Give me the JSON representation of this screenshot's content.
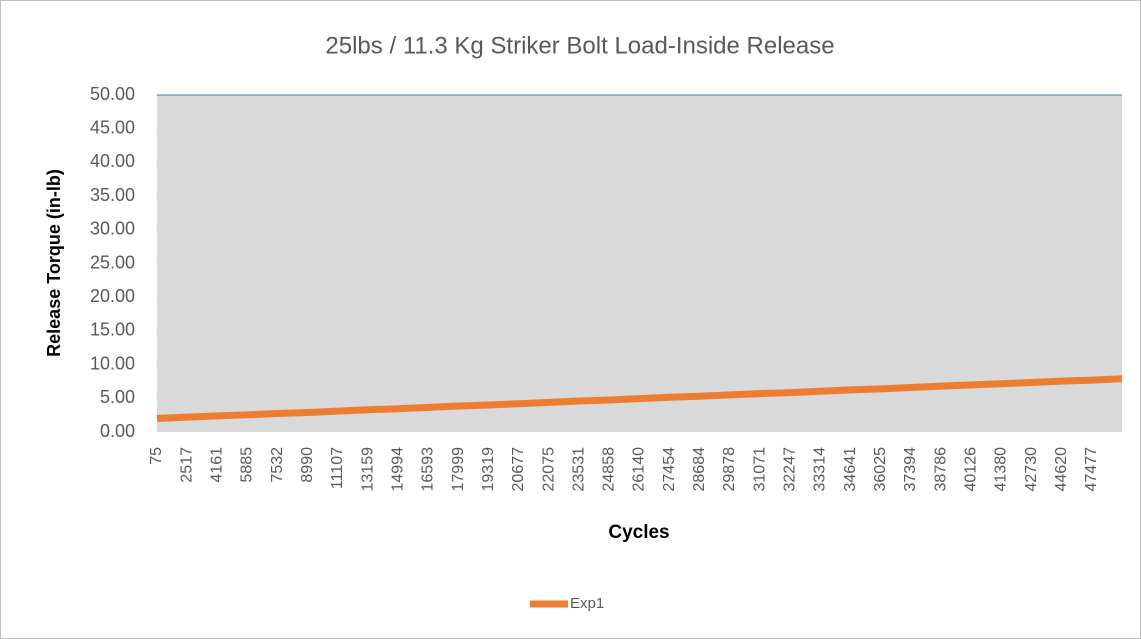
{
  "chart_data": {
    "type": "line",
    "title": "25lbs / 11.3 Kg Striker Bolt Load-Inside Release",
    "x_label": "Cycles",
    "y_label": "Release Torque (in-lb)",
    "categories": [
      "75",
      "2517",
      "4161",
      "5885",
      "7532",
      "8990",
      "11107",
      "13159",
      "14994",
      "16593",
      "17999",
      "19319",
      "20677",
      "22075",
      "23531",
      "24858",
      "26140",
      "27454",
      "28684",
      "29878",
      "31071",
      "32247",
      "33314",
      "34641",
      "36025",
      "37394",
      "38786",
      "40126",
      "41380",
      "42730",
      "44620",
      "47477",
      null
    ],
    "series": [
      {
        "name": "Exp1",
        "color": "#ed7d31",
        "values": [
          2.0,
          2.2,
          2.4,
          2.55,
          2.75,
          2.9,
          3.1,
          3.3,
          3.45,
          3.65,
          3.85,
          4.0,
          4.2,
          4.4,
          4.6,
          4.75,
          4.95,
          5.15,
          5.3,
          5.5,
          5.7,
          5.85,
          6.05,
          6.25,
          6.4,
          6.6,
          6.8,
          7.0,
          7.15,
          7.35,
          7.55,
          7.7,
          7.9
        ]
      }
    ],
    "ylim": [
      0,
      50
    ],
    "yticks": [
      {
        "value": 0,
        "label": "0.00"
      },
      {
        "value": 5,
        "label": "5.00"
      },
      {
        "value": 10,
        "label": "10.00"
      },
      {
        "value": 15,
        "label": "15.00"
      },
      {
        "value": 20,
        "label": "20.00"
      },
      {
        "value": 25,
        "label": "25.00"
      },
      {
        "value": 30,
        "label": "30.00"
      },
      {
        "value": 35,
        "label": "35.00"
      },
      {
        "value": 40,
        "label": "40.00"
      },
      {
        "value": 45,
        "label": "45.00"
      },
      {
        "value": 50,
        "label": "50.00"
      }
    ],
    "plot_background": "#d9d9d9",
    "top_line_color": "#4472c4",
    "legend": "bottom"
  }
}
